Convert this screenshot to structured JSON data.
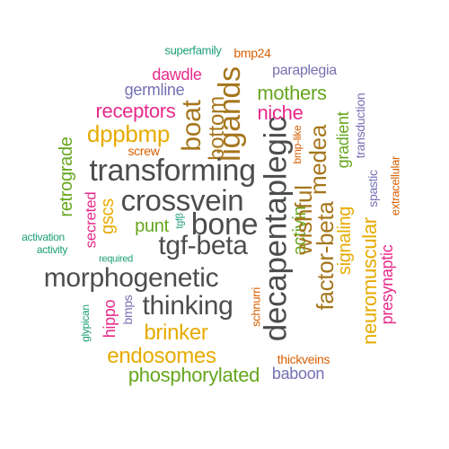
{
  "colors": {
    "teal": "#1b9e77",
    "orange": "#d95f02",
    "purple": "#7570b3",
    "magenta": "#e7298a",
    "green": "#66a61e",
    "gold": "#e6ab02",
    "brown": "#a6761d",
    "gray": "#4d4d4d"
  },
  "words": {
    "superfamily": "superfamily",
    "bmp24": "bmp24",
    "dawdle": "dawdle",
    "paraplegia": "paraplegia",
    "germline": "germline",
    "ligands": "ligands",
    "mothers": "mothers",
    "bottom": "bottom",
    "receptors": "receptors",
    "boat": "boat",
    "niche": "niche",
    "transduction": "transduction",
    "dppbmp": "dppbmp",
    "gradient": "gradient",
    "retrograde": "retrograde",
    "screw": "screw",
    "bmp_like": "bmp-like",
    "decapentaplegic": "decapentaplegic",
    "medea": "medea",
    "spastic": "spastic",
    "extracellular": "extracellular",
    "transforming": "transforming",
    "crossvein": "crossvein",
    "activin": "activin",
    "secreted": "secreted",
    "gscs": "gscs",
    "wishful": "wishful",
    "bone": "bone",
    "punt": "punt",
    "tgfb": "tgfβ",
    "factor_beta": "factor-beta",
    "signaling": "signaling",
    "neuromuscular": "neuromuscular",
    "activation": "activation",
    "activity": "activity",
    "tgf_beta": "tgf-beta",
    "required": "required",
    "presynaptic": "presynaptic",
    "morphogenetic": "morphogenetic",
    "schnurri": "schnurri",
    "thinking": "thinking",
    "hippo": "hippo",
    "bmps": "bmps",
    "glypican": "glypican",
    "brinker": "brinker",
    "endosomes": "endosomes",
    "thickveins": "thickveins",
    "phosphorylated": "phosphorylated",
    "baboon": "baboon"
  }
}
